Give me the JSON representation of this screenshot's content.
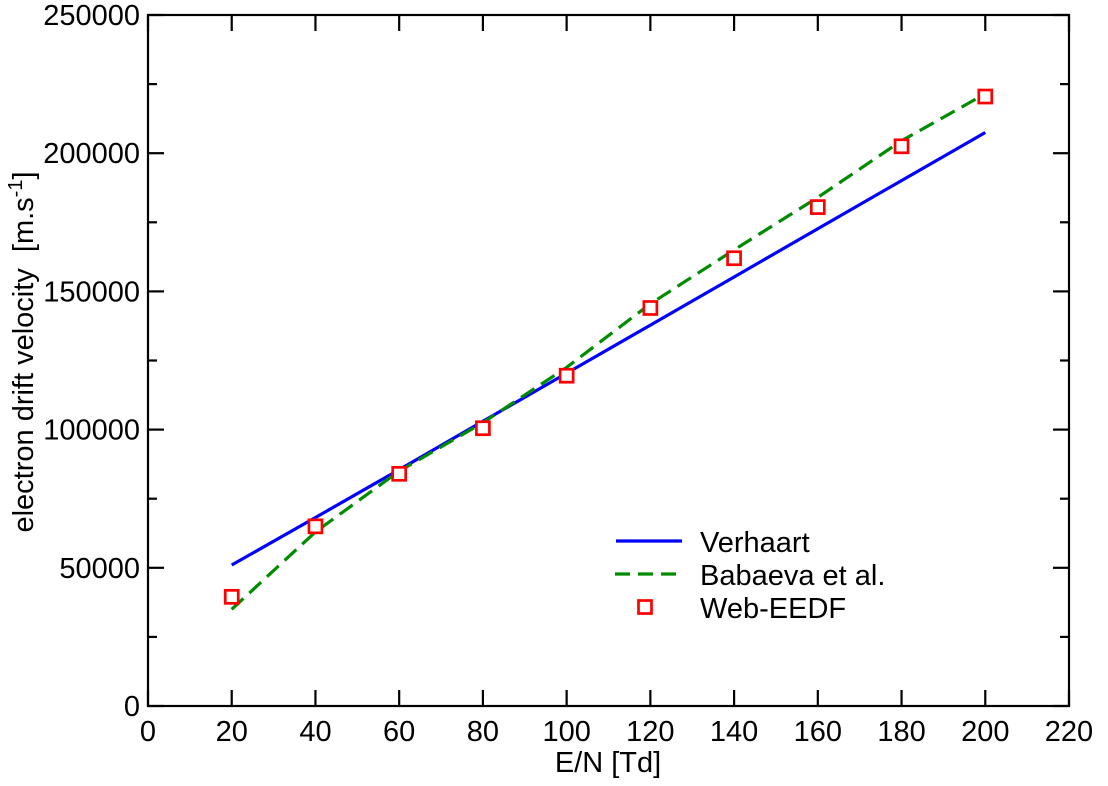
{
  "page": {
    "background": "#ffffff",
    "frame_color": "#000000"
  },
  "chart_data": {
    "type": "line",
    "title": "",
    "xlabel": "E/N [Td]",
    "ylabel": {
      "prefix": "electron drift velocity  [m.s",
      "superscript": "-1",
      "suffix": "]"
    },
    "xlim": [
      0,
      220
    ],
    "ylim": [
      0,
      250000
    ],
    "xticks": [
      0,
      20,
      40,
      60,
      80,
      100,
      120,
      140,
      160,
      180,
      200,
      220
    ],
    "yticks": [
      0,
      50000,
      100000,
      150000,
      200000,
      250000
    ],
    "ytick_labels": [
      "0",
      "50000",
      "100000",
      "150000",
      "200000",
      "250000"
    ],
    "yminor_step": 25000,
    "grid": false,
    "legend_position": "inside-lower-right",
    "x": [
      20,
      40,
      60,
      80,
      100,
      120,
      140,
      160,
      180,
      200
    ],
    "series": [
      {
        "name": "Verhaart",
        "type": "line",
        "style": "solid",
        "color": "#0000ff",
        "values": [
          51000,
          68200,
          85500,
          103000,
          120400,
          137800,
          155200,
          172700,
          190100,
          207500
        ]
      },
      {
        "name": "Babaeva et al.",
        "type": "line",
        "style": "dashed",
        "color": "#008c00",
        "values": [
          35000,
          63000,
          85000,
          102500,
          122500,
          145500,
          165000,
          184000,
          204500,
          221500
        ]
      },
      {
        "name": "Web-EEDF",
        "type": "scatter",
        "marker": "open-square",
        "color": "#ff0000",
        "values": [
          39500,
          65000,
          84000,
          100500,
          119500,
          144000,
          162000,
          180500,
          202500,
          220500
        ]
      }
    ]
  }
}
